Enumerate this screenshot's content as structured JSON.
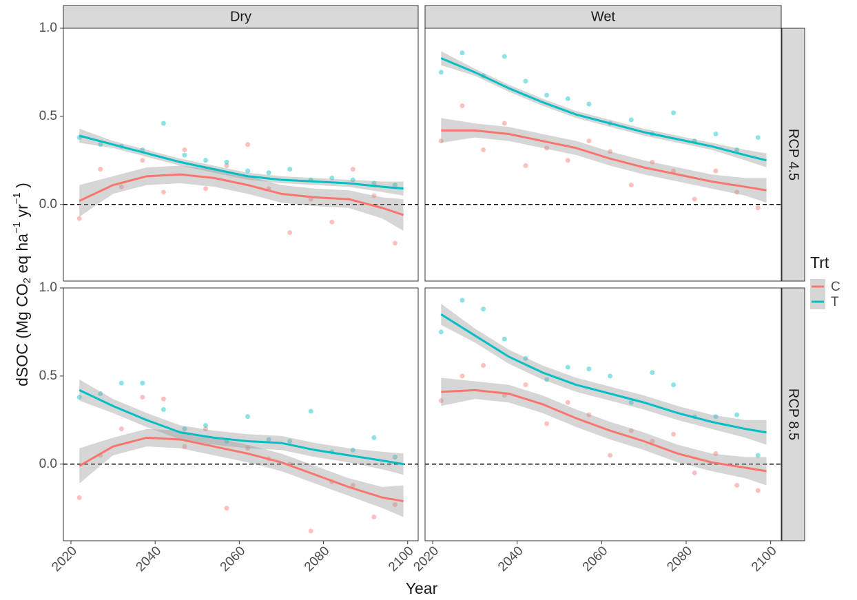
{
  "chart_data": {
    "type": "scatter",
    "x_label": "Year",
    "y_label": [
      "dSOC (Mg CO",
      "2",
      " eq ha",
      "−1",
      " yr",
      "−1",
      " )"
    ],
    "legend_title": "Trt",
    "columns": [
      "Dry",
      "Wet"
    ],
    "rows": [
      "RCP 4.5",
      "RCP 8.5"
    ],
    "xlim": [
      2018.2,
      2102.5
    ],
    "xticks": [
      2020,
      2040,
      2060,
      2080,
      2100
    ],
    "ylim": [
      -0.435,
      1.0
    ],
    "yticks": [
      {
        "value": 0,
        "label": "0.0"
      },
      0.5,
      {
        "value": 1,
        "label": "1.0"
      }
    ],
    "reference_line": 0,
    "series": [
      {
        "name": "C",
        "color": "#f8766d"
      },
      {
        "name": "T",
        "color": "#00bfc4"
      }
    ],
    "point_x": [
      2022,
      2027,
      2032,
      2037,
      2042,
      2047,
      2052,
      2057,
      2062,
      2067,
      2072,
      2077,
      2082,
      2087,
      2092,
      2097
    ],
    "smooth_x": [
      2022,
      2030,
      2038,
      2046,
      2054,
      2062,
      2070,
      2078,
      2086,
      2094,
      2099
    ],
    "panels": [
      {
        "column": 0,
        "row": 0,
        "points": [
          [
            -0.08,
            0.2,
            0.1,
            0.25,
            0.07,
            0.31,
            0.09,
            0.22,
            0.34,
            0.09,
            -0.16,
            0.03,
            -0.1,
            0.2,
            0.05,
            -0.22
          ],
          [
            0.38,
            0.34,
            0.33,
            0.31,
            0.46,
            0.28,
            0.25,
            0.24,
            0.19,
            0.18,
            0.2,
            0.14,
            0.15,
            0.14,
            0.12,
            0.11
          ]
        ],
        "smooth": [
          {
            "values": [
              0.02,
              0.11,
              0.16,
              0.17,
              0.15,
              0.11,
              0.06,
              0.04,
              0.03,
              -0.02,
              -0.06
            ],
            "lower": [
              -0.07,
              0.06,
              0.11,
              0.12,
              0.1,
              0.06,
              0.01,
              -0.01,
              -0.02,
              -0.08,
              -0.15
            ],
            "upper": [
              0.11,
              0.16,
              0.21,
              0.22,
              0.2,
              0.16,
              0.11,
              0.09,
              0.08,
              0.04,
              0.03
            ]
          },
          {
            "values": [
              0.39,
              0.34,
              0.29,
              0.24,
              0.2,
              0.16,
              0.14,
              0.13,
              0.12,
              0.1,
              0.09
            ],
            "lower": [
              0.35,
              0.32,
              0.27,
              0.22,
              0.18,
              0.14,
              0.12,
              0.11,
              0.1,
              0.07,
              0.05
            ],
            "upper": [
              0.43,
              0.36,
              0.31,
              0.26,
              0.22,
              0.18,
              0.16,
              0.15,
              0.14,
              0.13,
              0.13
            ]
          }
        ]
      },
      {
        "column": 1,
        "row": 0,
        "points": [
          [
            0.36,
            0.56,
            0.31,
            0.46,
            0.22,
            0.32,
            0.25,
            0.36,
            0.3,
            0.11,
            0.24,
            0.19,
            0.03,
            0.19,
            0.07,
            -0.02
          ],
          [
            0.75,
            0.86,
            0.73,
            0.84,
            0.7,
            0.62,
            0.6,
            0.57,
            0.46,
            0.48,
            0.4,
            0.52,
            0.36,
            0.4,
            0.31,
            0.38
          ]
        ],
        "smooth": [
          {
            "values": [
              0.42,
              0.42,
              0.4,
              0.36,
              0.32,
              0.26,
              0.21,
              0.17,
              0.13,
              0.1,
              0.08
            ],
            "lower": [
              0.35,
              0.38,
              0.36,
              0.32,
              0.28,
              0.22,
              0.17,
              0.13,
              0.09,
              0.05,
              0.01
            ],
            "upper": [
              0.49,
              0.46,
              0.44,
              0.4,
              0.36,
              0.3,
              0.25,
              0.21,
              0.17,
              0.15,
              0.15
            ]
          },
          {
            "values": [
              0.83,
              0.75,
              0.66,
              0.58,
              0.51,
              0.46,
              0.41,
              0.37,
              0.33,
              0.28,
              0.25
            ],
            "lower": [
              0.79,
              0.73,
              0.64,
              0.56,
              0.49,
              0.44,
              0.39,
              0.35,
              0.31,
              0.25,
              0.21
            ],
            "upper": [
              0.87,
              0.77,
              0.68,
              0.6,
              0.53,
              0.48,
              0.43,
              0.39,
              0.35,
              0.31,
              0.29
            ]
          }
        ]
      },
      {
        "column": 0,
        "row": 1,
        "points": [
          [
            -0.19,
            0.05,
            0.2,
            0.38,
            0.37,
            0.1,
            0.2,
            -0.25,
            0.09,
            0.03,
            0.0,
            -0.38,
            -0.1,
            -0.12,
            -0.3,
            -0.23
          ],
          [
            0.38,
            0.4,
            0.46,
            0.46,
            0.31,
            0.2,
            0.22,
            0.13,
            0.27,
            0.14,
            0.13,
            0.3,
            0.07,
            0.08,
            0.15,
            0.04
          ]
        ],
        "smooth": [
          {
            "values": [
              -0.01,
              0.1,
              0.15,
              0.14,
              0.1,
              0.06,
              0.01,
              -0.06,
              -0.13,
              -0.19,
              -0.21
            ],
            "lower": [
              -0.11,
              0.05,
              0.1,
              0.09,
              0.05,
              0.01,
              -0.04,
              -0.11,
              -0.18,
              -0.25,
              -0.3
            ],
            "upper": [
              0.09,
              0.15,
              0.2,
              0.19,
              0.15,
              0.11,
              0.06,
              -0.01,
              -0.08,
              -0.13,
              -0.12
            ]
          },
          {
            "values": [
              0.42,
              0.33,
              0.25,
              0.18,
              0.15,
              0.13,
              0.12,
              0.08,
              0.05,
              0.02,
              0.0
            ],
            "lower": [
              0.36,
              0.29,
              0.21,
              0.14,
              0.11,
              0.09,
              0.08,
              0.04,
              0.01,
              -0.03,
              -0.06
            ],
            "upper": [
              0.48,
              0.37,
              0.29,
              0.22,
              0.19,
              0.17,
              0.16,
              0.12,
              0.09,
              0.07,
              0.06
            ]
          }
        ]
      },
      {
        "column": 1,
        "row": 1,
        "points": [
          [
            0.36,
            0.5,
            0.56,
            0.39,
            0.45,
            0.23,
            0.35,
            0.28,
            0.05,
            0.19,
            0.13,
            0.17,
            -0.05,
            0.06,
            -0.12,
            -0.15
          ],
          [
            0.75,
            0.93,
            0.88,
            0.71,
            0.6,
            0.48,
            0.55,
            0.54,
            0.5,
            0.35,
            0.52,
            0.45,
            0.27,
            0.27,
            0.28,
            0.05
          ]
        ],
        "smooth": [
          {
            "values": [
              0.41,
              0.42,
              0.4,
              0.34,
              0.26,
              0.19,
              0.13,
              0.06,
              0.01,
              -0.02,
              -0.04
            ],
            "lower": [
              0.33,
              0.37,
              0.35,
              0.29,
              0.21,
              0.14,
              0.08,
              0.01,
              -0.04,
              -0.08,
              -0.12
            ],
            "upper": [
              0.49,
              0.47,
              0.45,
              0.39,
              0.31,
              0.24,
              0.18,
              0.11,
              0.06,
              0.04,
              0.04
            ]
          },
          {
            "values": [
              0.85,
              0.73,
              0.61,
              0.52,
              0.45,
              0.4,
              0.35,
              0.29,
              0.24,
              0.2,
              0.18
            ],
            "lower": [
              0.79,
              0.69,
              0.57,
              0.48,
              0.41,
              0.36,
              0.31,
              0.25,
              0.2,
              0.15,
              0.11
            ],
            "upper": [
              0.91,
              0.77,
              0.65,
              0.56,
              0.49,
              0.44,
              0.39,
              0.33,
              0.28,
              0.25,
              0.25
            ]
          }
        ]
      }
    ]
  }
}
